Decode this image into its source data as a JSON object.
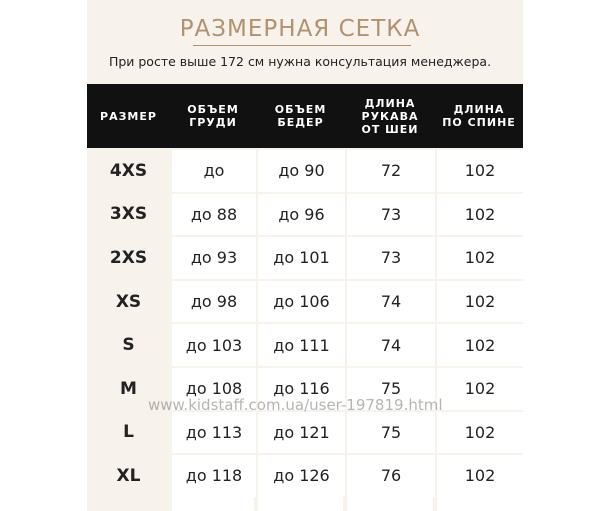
{
  "header": {
    "title": "РАЗМЕРНАЯ СЕТКА",
    "subtitle": "При росте выше 172 см нужна консультация менеджера."
  },
  "table": {
    "columns": [
      [
        "РАЗМЕР"
      ],
      [
        "ОБЪЕМ",
        "ГРУДИ"
      ],
      [
        "ОБЪЕМ",
        "БЕДЕР"
      ],
      [
        "ДЛИНА",
        "РУКАВА",
        "ОТ ШЕИ"
      ],
      [
        "ДЛИНА",
        "ПО СПИНЕ"
      ]
    ],
    "rows": [
      [
        "4XS",
        "до",
        "до 90",
        "72",
        "102"
      ],
      [
        "3XS",
        "до 88",
        "до 96",
        "73",
        "102"
      ],
      [
        "2XS",
        "до 93",
        "до 101",
        "73",
        "102"
      ],
      [
        "XS",
        "до 98",
        "до 106",
        "74",
        "102"
      ],
      [
        "S",
        "до 103",
        "до 111",
        "74",
        "102"
      ],
      [
        "M",
        "до 108",
        "до 116",
        "75",
        "102"
      ],
      [
        "L",
        "до 113",
        "до 121",
        "75",
        "102"
      ],
      [
        "XL",
        "до 118",
        "до 126",
        "76",
        "102"
      ]
    ]
  },
  "watermark": "www.kidstaff.com.ua/user-197819.html"
}
